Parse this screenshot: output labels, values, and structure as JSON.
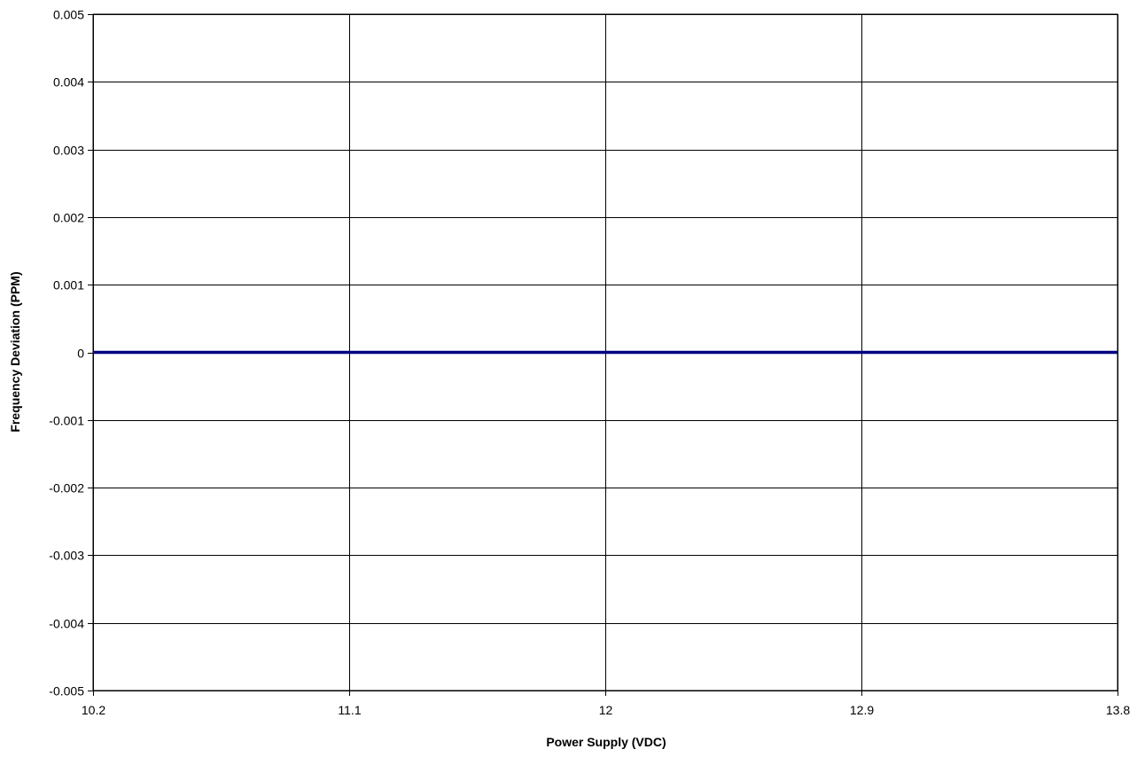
{
  "chart_data": {
    "type": "line",
    "title": "",
    "xlabel": "Power Supply (VDC)",
    "ylabel": "Frequency Deviation (PPM)",
    "x_ticks": [
      "10.2",
      "11.1",
      "12",
      "12.9",
      "13.8"
    ],
    "y_ticks": [
      "0.005",
      "0.004",
      "0.003",
      "0.002",
      "0.001",
      "0",
      "-0.001",
      "-0.002",
      "-0.003",
      "-0.004",
      "-0.005"
    ],
    "xlim": [
      10.2,
      13.8
    ],
    "ylim": [
      -0.005,
      0.005
    ],
    "grid": true,
    "series": [
      {
        "color": "#000080",
        "x": [
          10.2,
          11.1,
          12,
          12.9,
          13.8
        ],
        "values": [
          0,
          0,
          0,
          0,
          0
        ]
      }
    ]
  }
}
